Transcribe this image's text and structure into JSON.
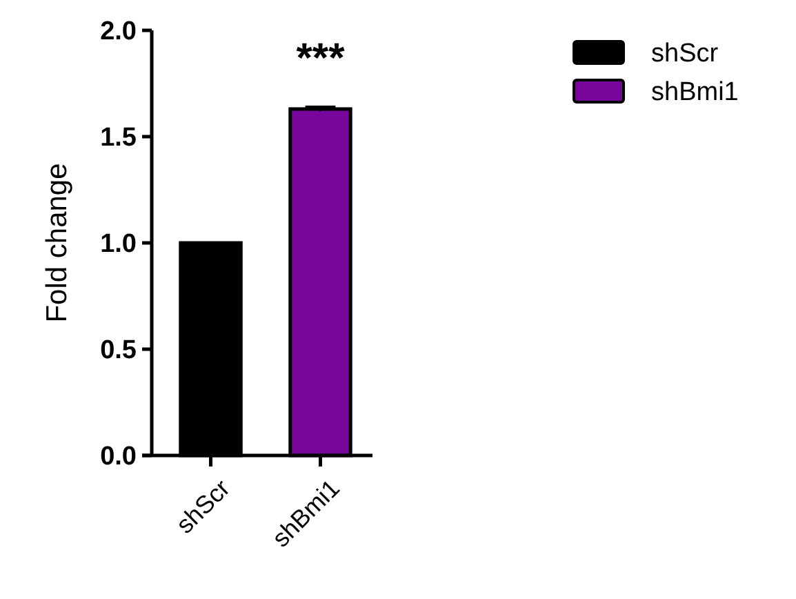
{
  "chart_data": {
    "type": "bar",
    "ylabel": "Fold change",
    "categories": [
      "shScr",
      "shBmi1"
    ],
    "series": [
      {
        "name": "shScr",
        "color": "#000000",
        "values": [
          1.0,
          null
        ]
      },
      {
        "name": "shBmi1",
        "color": "#76079a",
        "values": [
          null,
          1.63
        ],
        "errors": [
          null,
          0.01
        ]
      }
    ],
    "ylim": [
      0,
      2
    ],
    "yticks": [
      {
        "value": 0,
        "label": "0.0"
      },
      {
        "value": 0.5,
        "label": "0.5"
      },
      {
        "value": 1,
        "label": "1.0"
      },
      {
        "value": 1.5,
        "label": "1.5"
      },
      {
        "value": 2,
        "label": "2.0"
      }
    ],
    "annotations": [
      "***"
    ],
    "legend": "right",
    "grid": false
  }
}
